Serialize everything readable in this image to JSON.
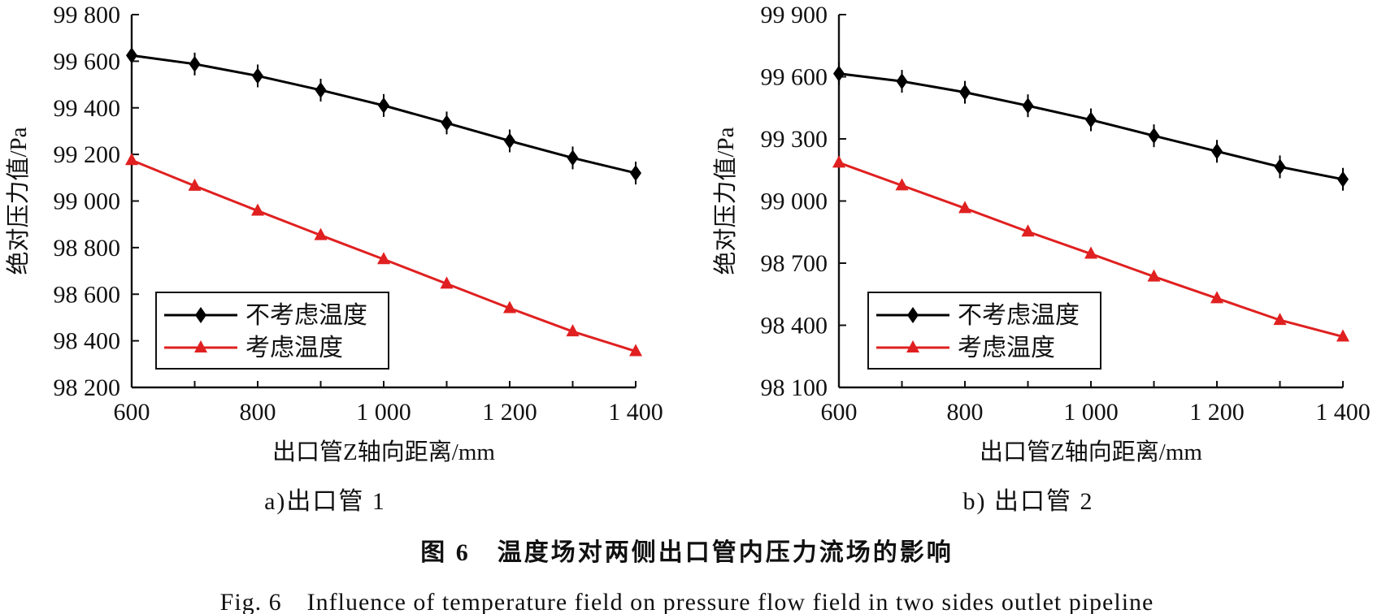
{
  "chart_data": [
    {
      "type": "line",
      "xlabel": "出口管Z轴向距离/mm",
      "ylabel": "绝对压力值/Pa",
      "xlim": [
        600,
        1400
      ],
      "ylim": [
        98200,
        99800
      ],
      "x_ticks": [
        600,
        800,
        1000,
        1200,
        1400
      ],
      "x_tick_labels": [
        "600",
        "800",
        "1 000",
        "1 200",
        "1 400"
      ],
      "y_ticks": [
        98200,
        98400,
        98600,
        98800,
        99000,
        99200,
        99400,
        99600,
        99800
      ],
      "y_tick_labels": [
        "98 200",
        "98 400",
        "98 600",
        "98 800",
        "99 000",
        "99 200",
        "99 400",
        "99 600",
        "99 800"
      ],
      "x": [
        600,
        700,
        800,
        900,
        1000,
        1100,
        1200,
        1300,
        1400
      ],
      "series": [
        {
          "name": "不考虑温度",
          "color": "#000000",
          "marker": "diamond",
          "values": [
            99625,
            99588,
            99537,
            99476,
            99410,
            99335,
            99258,
            99185,
            99120
          ]
        },
        {
          "name": "考虑温度",
          "color": "#e02020",
          "marker": "triangle",
          "values": [
            99175,
            99065,
            98958,
            98853,
            98750,
            98645,
            98540,
            98440,
            98355
          ]
        }
      ],
      "legend_position": "bottom-left",
      "grid": false,
      "subcaption": "a)出口管 1"
    },
    {
      "type": "line",
      "xlabel": "出口管Z轴向距离/mm",
      "ylabel": "绝对压力值/Pa",
      "xlim": [
        600,
        1400
      ],
      "ylim": [
        98100,
        99900
      ],
      "x_ticks": [
        600,
        800,
        1000,
        1200,
        1400
      ],
      "x_tick_labels": [
        "600",
        "800",
        "1 000",
        "1 200",
        "1 400"
      ],
      "y_ticks": [
        98100,
        98400,
        98700,
        99000,
        99300,
        99600,
        99900
      ],
      "y_tick_labels": [
        "98 100",
        "98 400",
        "98 700",
        "99 000",
        "99 300",
        "99 600",
        "99 900"
      ],
      "x": [
        600,
        700,
        800,
        900,
        1000,
        1100,
        1200,
        1300,
        1400
      ],
      "series": [
        {
          "name": "不考虑温度",
          "color": "#000000",
          "marker": "diamond",
          "values": [
            99615,
            99578,
            99525,
            99460,
            99392,
            99315,
            99240,
            99165,
            99105
          ]
        },
        {
          "name": "考虑温度",
          "color": "#e02020",
          "marker": "triangle",
          "values": [
            99185,
            99075,
            98965,
            98852,
            98745,
            98635,
            98530,
            98425,
            98345
          ]
        }
      ],
      "legend_position": "bottom-left",
      "grid": false,
      "subcaption": "b) 出口管 2"
    }
  ],
  "caption": {
    "zh": "图 6　温度场对两侧出口管内压力流场的影响",
    "en": "Fig. 6　Influence of temperature field on pressure flow field in two sides outlet pipeline"
  }
}
